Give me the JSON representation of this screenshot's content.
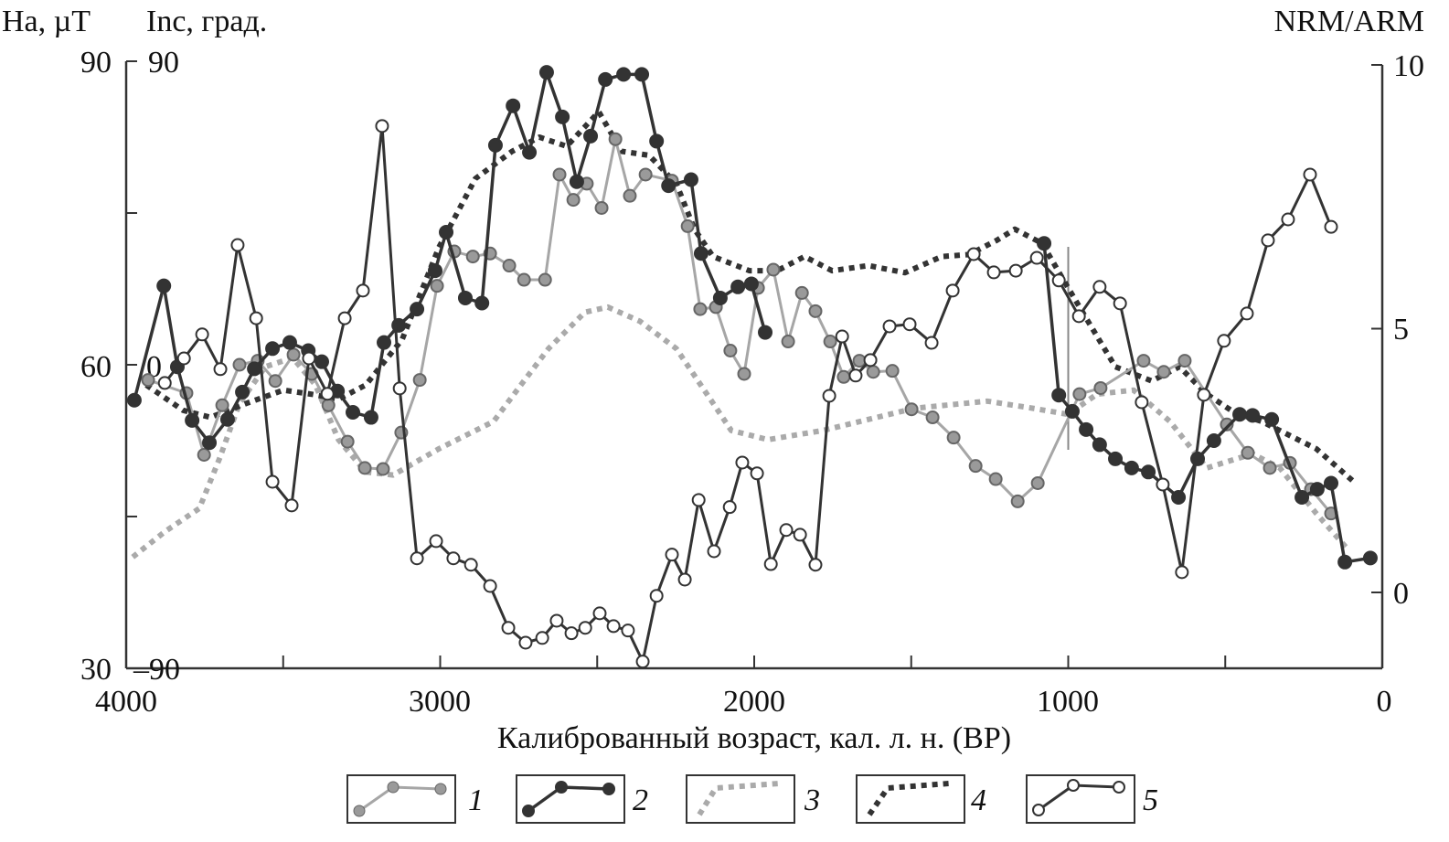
{
  "chart_data": {
    "type": "line",
    "title": "",
    "xlabel": "Калиброванный возраст, кал. л. н. (BP)",
    "xlim": [
      4000,
      0
    ],
    "x_ticks": [
      "4000",
      "3000",
      "2000",
      "1000",
      "0"
    ],
    "axes": {
      "ha": {
        "label": "Ha, µT",
        "ylim": [
          30,
          90
        ],
        "ticks": [
          "90",
          "60",
          "30"
        ]
      },
      "inc": {
        "label": "Inc, град.",
        "ylim": [
          -90,
          90
        ],
        "ticks": [
          "90",
          "0",
          "–90"
        ]
      },
      "nrm": {
        "label": "NRM/ARM",
        "ylim": [
          0,
          10
        ],
        "ticks": [
          "10",
          "5",
          "0"
        ]
      }
    },
    "marker_age": 1000,
    "legend": [
      "1",
      "2",
      "3",
      "4",
      "5"
    ],
    "series": [
      {
        "name": "1",
        "axis": "ha",
        "style": "gray-circles",
        "points": [
          [
            3930,
            58.5
          ],
          [
            3808,
            57.2
          ],
          [
            3752,
            51.1
          ],
          [
            3694,
            56.0
          ],
          [
            3639,
            60.0
          ],
          [
            3581,
            60.4
          ],
          [
            3525,
            58.4
          ],
          [
            3467,
            61.0
          ],
          [
            3409,
            59.1
          ],
          [
            3356,
            56.0
          ],
          [
            3295,
            52.4
          ],
          [
            3240,
            49.8
          ],
          [
            3182,
            49.7
          ],
          [
            3124,
            53.3
          ],
          [
            3065,
            58.5
          ],
          [
            3010,
            67.8
          ],
          [
            2955,
            71.2
          ],
          [
            2896,
            70.7
          ],
          [
            2841,
            71.0
          ],
          [
            2780,
            69.8
          ],
          [
            2733,
            68.4
          ],
          [
            2666,
            68.4
          ],
          [
            2620,
            78.8
          ],
          [
            2576,
            76.3
          ],
          [
            2533,
            77.9
          ],
          [
            2486,
            75.5
          ],
          [
            2442,
            82.3
          ],
          [
            2396,
            76.7
          ],
          [
            2346,
            78.8
          ],
          [
            2262,
            78.2
          ],
          [
            2212,
            73.7
          ],
          [
            2172,
            65.5
          ],
          [
            2122,
            65.7
          ],
          [
            2076,
            61.4
          ],
          [
            2032,
            59.1
          ],
          [
            1988,
            67.6
          ],
          [
            1939,
            69.4
          ],
          [
            1892,
            62.3
          ],
          [
            1848,
            67.1
          ],
          [
            1805,
            65.3
          ],
          [
            1758,
            62.3
          ],
          [
            1715,
            58.8
          ],
          [
            1665,
            60.4
          ],
          [
            1621,
            59.3
          ],
          [
            1560,
            59.4
          ],
          [
            1499,
            55.6
          ],
          [
            1432,
            54.8
          ],
          [
            1365,
            52.8
          ],
          [
            1295,
            50.0
          ],
          [
            1231,
            48.7
          ],
          [
            1161,
            46.5
          ],
          [
            1097,
            48.3
          ],
          [
            964,
            57.1
          ],
          [
            897,
            57.7
          ],
          [
            760,
            60.4
          ],
          [
            696,
            59.3
          ],
          [
            629,
            60.4
          ],
          [
            495,
            54.1
          ],
          [
            428,
            51.3
          ],
          [
            358,
            49.8
          ],
          [
            294,
            50.3
          ],
          [
            227,
            47.7
          ],
          [
            163,
            45.3
          ]
        ]
      },
      {
        "name": "2",
        "axis": "ha",
        "style": "dark-circles",
        "points": [
          [
            3974,
            56.5
          ],
          [
            3880,
            67.8
          ],
          [
            3837,
            59.8
          ],
          [
            3790,
            54.5
          ],
          [
            3735,
            52.3
          ],
          [
            3677,
            54.6
          ],
          [
            3630,
            57.3
          ],
          [
            3592,
            59.6
          ],
          [
            3534,
            61.6
          ],
          [
            3479,
            62.2
          ],
          [
            3420,
            61.4
          ],
          [
            3377,
            60.3
          ],
          [
            3327,
            57.4
          ],
          [
            3278,
            55.3
          ],
          [
            3220,
            54.8
          ],
          [
            3179,
            62.2
          ],
          [
            3132,
            63.9
          ],
          [
            3074,
            65.5
          ],
          [
            3016,
            69.3
          ],
          [
            2981,
            73.1
          ],
          [
            2920,
            66.6
          ],
          [
            2867,
            66.1
          ],
          [
            2824,
            81.7
          ],
          [
            2768,
            85.6
          ],
          [
            2716,
            81.0
          ],
          [
            2661,
            88.9
          ],
          [
            2611,
            84.5
          ],
          [
            2565,
            78.1
          ],
          [
            2521,
            82.6
          ],
          [
            2474,
            88.2
          ],
          [
            2416,
            88.7
          ],
          [
            2358,
            88.7
          ],
          [
            2311,
            82.1
          ],
          [
            2273,
            77.7
          ],
          [
            2201,
            78.3
          ],
          [
            2169,
            71.0
          ],
          [
            2108,
            66.6
          ],
          [
            2052,
            67.7
          ],
          [
            2009,
            68.0
          ],
          [
            1965,
            63.2
          ],
          null,
          [
            1077,
            72.0
          ],
          [
            1030,
            57.0
          ],
          [
            987,
            55.4
          ],
          [
            943,
            53.6
          ],
          [
            900,
            52.1
          ],
          [
            850,
            50.7
          ],
          [
            798,
            49.8
          ],
          [
            745,
            49.4
          ],
          [
            649,
            46.9
          ],
          [
            588,
            50.7
          ],
          [
            536,
            52.5
          ],
          [
            454,
            55.1
          ],
          [
            413,
            55.0
          ],
          [
            352,
            54.6
          ],
          [
            256,
            46.9
          ],
          [
            207,
            47.7
          ],
          [
            163,
            48.3
          ],
          [
            119,
            40.5
          ],
          [
            38,
            40.9
          ]
        ]
      },
      {
        "name": "3",
        "axis": "ha",
        "style": "gray-dotted",
        "points": [
          [
            3979,
            41.0
          ],
          [
            3877,
            43.5
          ],
          [
            3767,
            45.8
          ],
          [
            3703,
            50.7
          ],
          [
            3639,
            56.2
          ],
          [
            3557,
            59.8
          ],
          [
            3470,
            60.7
          ],
          [
            3397,
            58.0
          ],
          [
            3324,
            52.6
          ],
          [
            3237,
            49.4
          ],
          [
            3150,
            49.1
          ],
          [
            3004,
            51.7
          ],
          [
            2830,
            54.4
          ],
          [
            2743,
            58.0
          ],
          [
            2655,
            61.6
          ],
          [
            2539,
            65.2
          ],
          [
            2466,
            65.7
          ],
          [
            2364,
            64.3
          ],
          [
            2248,
            61.6
          ],
          [
            2131,
            56.2
          ],
          [
            2073,
            53.5
          ],
          [
            1956,
            52.6
          ],
          [
            1782,
            53.5
          ],
          [
            1490,
            55.7
          ],
          [
            1258,
            56.4
          ],
          [
            1112,
            55.7
          ],
          [
            1001,
            55.1
          ],
          [
            908,
            57.1
          ],
          [
            792,
            57.5
          ],
          [
            676,
            54.4
          ],
          [
            559,
            49.8
          ],
          [
            413,
            51.2
          ],
          [
            326,
            49.8
          ],
          [
            210,
            45.3
          ],
          [
            108,
            41.7
          ]
        ]
      },
      {
        "name": "4",
        "axis": "ha",
        "style": "dark-dotted",
        "points": [
          [
            3936,
            58.0
          ],
          [
            3819,
            55.5
          ],
          [
            3732,
            54.8
          ],
          [
            3616,
            56.2
          ],
          [
            3499,
            57.5
          ],
          [
            3412,
            57.1
          ],
          [
            3324,
            56.6
          ],
          [
            3237,
            58.0
          ],
          [
            3121,
            62.5
          ],
          [
            3004,
            71.6
          ],
          [
            2888,
            78.4
          ],
          [
            2771,
            81.1
          ],
          [
            2684,
            82.5
          ],
          [
            2597,
            81.6
          ],
          [
            2495,
            85.0
          ],
          [
            2422,
            81.1
          ],
          [
            2335,
            80.7
          ],
          [
            2248,
            77.9
          ],
          [
            2190,
            73.4
          ],
          [
            2131,
            70.7
          ],
          [
            2015,
            69.3
          ],
          [
            1927,
            69.3
          ],
          [
            1840,
            70.7
          ],
          [
            1752,
            69.3
          ],
          [
            1636,
            69.8
          ],
          [
            1520,
            69.1
          ],
          [
            1403,
            70.7
          ],
          [
            1316,
            70.9
          ],
          [
            1228,
            72.3
          ],
          [
            1170,
            73.4
          ],
          [
            1083,
            72.0
          ],
          [
            1025,
            68.9
          ],
          [
            937,
            64.3
          ],
          [
            850,
            59.8
          ],
          [
            734,
            58.4
          ],
          [
            646,
            59.8
          ],
          [
            559,
            57.1
          ],
          [
            472,
            55.3
          ],
          [
            384,
            54.4
          ],
          [
            268,
            52.6
          ],
          [
            210,
            51.7
          ],
          [
            93,
            48.5
          ]
        ]
      },
      {
        "name": "5",
        "axis": "inc",
        "style": "open-circles",
        "points": [
          [
            3877,
            -5.4
          ],
          [
            3816,
            1.9
          ],
          [
            3758,
            9.0
          ],
          [
            3700,
            -1.3
          ],
          [
            3645,
            35.5
          ],
          [
            3586,
            13.8
          ],
          [
            3534,
            -34.7
          ],
          [
            3473,
            -41.7
          ],
          [
            3418,
            1.9
          ],
          [
            3359,
            -8.6
          ],
          [
            3304,
            13.8
          ],
          [
            3246,
            22.0
          ],
          [
            3185,
            70.8
          ],
          [
            3129,
            -7.0
          ],
          [
            3074,
            -57.4
          ],
          [
            3013,
            -52.3
          ],
          [
            2958,
            -57.4
          ],
          [
            2902,
            -59.3
          ],
          [
            2841,
            -65.6
          ],
          [
            2783,
            -78.0
          ],
          [
            2728,
            -82.4
          ],
          [
            2675,
            -81.0
          ],
          [
            2629,
            -75.9
          ],
          [
            2582,
            -79.6
          ],
          [
            2538,
            -78.0
          ],
          [
            2492,
            -73.7
          ],
          [
            2448,
            -77.5
          ],
          [
            2402,
            -78.8
          ],
          [
            2355,
            -88.0
          ],
          [
            2311,
            -68.5
          ],
          [
            2262,
            -56.3
          ],
          [
            2221,
            -63.7
          ],
          [
            2177,
            -40.1
          ],
          [
            2128,
            -55.3
          ],
          [
            2078,
            -42.2
          ],
          [
            2038,
            -29.0
          ],
          [
            1991,
            -32.2
          ],
          [
            1947,
            -59.1
          ],
          [
            1898,
            -49.0
          ],
          [
            1854,
            -50.4
          ],
          [
            1805,
            -59.3
          ],
          [
            1761,
            -9.2
          ],
          [
            1720,
            8.4
          ],
          [
            1677,
            -3.2
          ],
          [
            1630,
            1.4
          ],
          [
            1569,
            11.4
          ],
          [
            1505,
            12.0
          ],
          [
            1435,
            6.5
          ],
          [
            1368,
            22.0
          ],
          [
            1301,
            32.8
          ],
          [
            1237,
            27.4
          ],
          [
            1167,
            27.9
          ],
          [
            1100,
            31.7
          ],
          [
            1030,
            25.0
          ],
          [
            966,
            14.4
          ],
          [
            900,
            23.1
          ],
          [
            835,
            18.2
          ],
          [
            766,
            -11.1
          ],
          [
            699,
            -35.5
          ],
          [
            638,
            -61.5
          ],
          [
            568,
            -8.9
          ],
          [
            504,
            7.1
          ],
          [
            431,
            15.2
          ],
          [
            364,
            36.9
          ],
          [
            300,
            43.1
          ],
          [
            230,
            56.4
          ],
          [
            163,
            40.9
          ]
        ]
      }
    ],
    "colors": {
      "dark": "#333333",
      "gray_line": "#a6a6a6",
      "gray_fill": "#9a9a9a",
      "gray_dots": "#aaaaaa"
    }
  }
}
